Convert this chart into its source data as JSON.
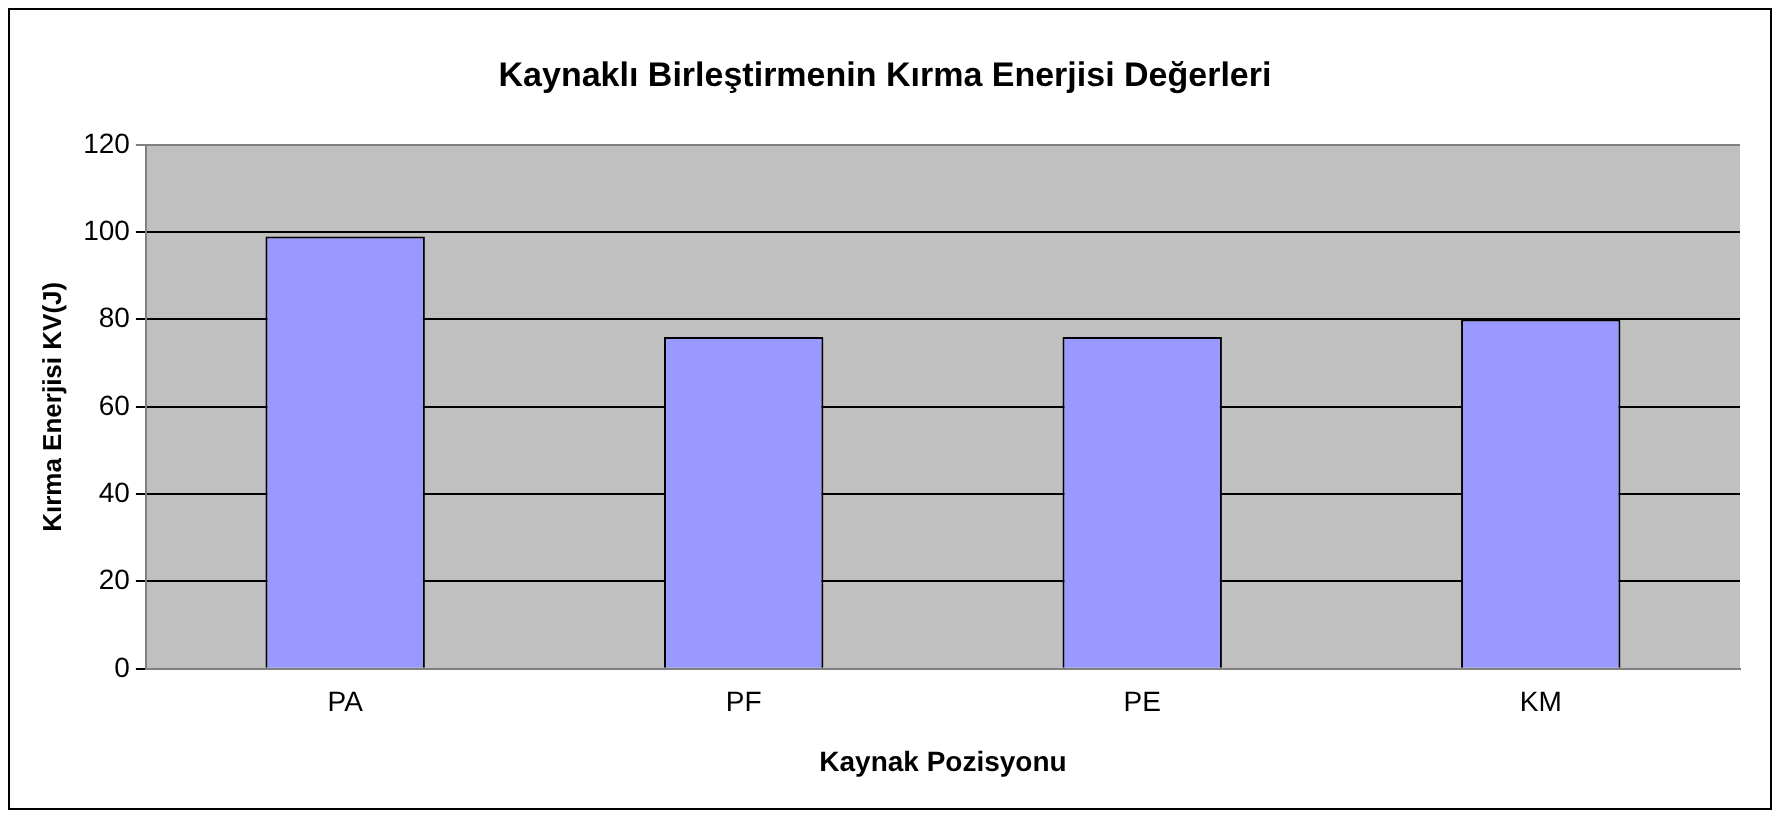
{
  "chart_data": {
    "type": "bar",
    "title": "Kaynaklı Birleştirmenin Kırma Enerjisi Değerleri",
    "xlabel": "Kaynak Pozisyonu",
    "ylabel": "Kırma Enerjisi KV(J)",
    "categories": [
      "PA",
      "PF",
      "PE",
      "KM"
    ],
    "values": [
      99,
      76,
      76,
      80
    ],
    "color": "#9999ff",
    "ylim": [
      0,
      120
    ],
    "yticks": [
      0,
      20,
      40,
      60,
      80,
      100,
      120
    ],
    "grid": "y",
    "legend": false
  }
}
